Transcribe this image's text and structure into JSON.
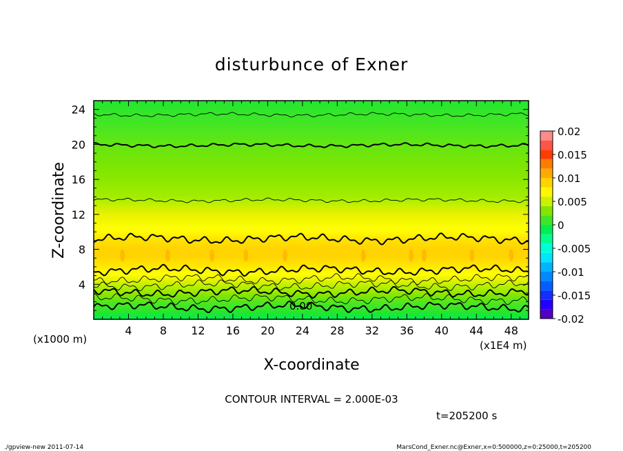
{
  "chart_data": {
    "type": "heatmap",
    "title": "disturbunce of Exner",
    "xlabel": "X-coordinate",
    "ylabel": "Z-coordinate",
    "x_unit": "(x1E4 m)",
    "y_unit": "(x1000 m)",
    "xlim": [
      0,
      50
    ],
    "ylim": [
      0,
      25
    ],
    "x_ticks": [
      "4",
      "8",
      "12",
      "16",
      "20",
      "24",
      "28",
      "32",
      "36",
      "40",
      "44",
      "48"
    ],
    "y_ticks": [
      "4",
      "8",
      "12",
      "16",
      "20",
      "24"
    ],
    "contour_interval_text": "CONTOUR INTERVAL = 2.000E-03",
    "contour_label": "0.00",
    "time_text": "t=205200 s",
    "colorbar": {
      "ticks": [
        "0.02",
        "0.015",
        "0.01",
        "0.005",
        "0",
        "-0.005",
        "-0.01",
        "-0.015",
        "-0.02"
      ],
      "range": [
        -0.02,
        0.02
      ]
    },
    "profile": [
      {
        "z": 0,
        "value": -0.0012
      },
      {
        "z": 1,
        "value": 0.0004
      },
      {
        "z": 2,
        "value": 0.0016
      },
      {
        "z": 3,
        "value": 0.0034
      },
      {
        "z": 4,
        "value": 0.0048
      },
      {
        "z": 5,
        "value": 0.0062
      },
      {
        "z": 6,
        "value": 0.0078
      },
      {
        "z": 7,
        "value": 0.0088
      },
      {
        "z": 8,
        "value": 0.009
      },
      {
        "z": 9,
        "value": 0.0084
      },
      {
        "z": 10,
        "value": 0.0068
      },
      {
        "z": 11,
        "value": 0.0062
      },
      {
        "z": 12,
        "value": 0.0056
      },
      {
        "z": 13,
        "value": 0.0049
      },
      {
        "z": 14,
        "value": 0.004
      },
      {
        "z": 16,
        "value": 0.0033
      },
      {
        "z": 18,
        "value": 0.0027
      },
      {
        "z": 20,
        "value": 0.0021
      },
      {
        "z": 22,
        "value": 0.0013
      },
      {
        "z": 24,
        "value": 0.0005
      },
      {
        "z": 25,
        "value": 0.0002
      }
    ],
    "contour_lines": [
      {
        "z": 1.4,
        "bold": true
      },
      {
        "z": 2.3,
        "bold": false
      },
      {
        "z": 3.1,
        "bold": true
      },
      {
        "z": 3.9,
        "bold": false
      },
      {
        "z": 4.6,
        "bold": false
      },
      {
        "z": 5.6,
        "bold": true
      },
      {
        "z": 9.2,
        "bold": true
      },
      {
        "z": 13.6,
        "bold": false
      },
      {
        "z": 19.9,
        "bold": true
      },
      {
        "z": 23.4,
        "bold": false
      }
    ]
  },
  "footer": {
    "left": "./gpview-new  2011-07-14",
    "right": "MarsCond_Exner.nc@Exner,x=0:500000,z=0:25000,t=205200"
  }
}
